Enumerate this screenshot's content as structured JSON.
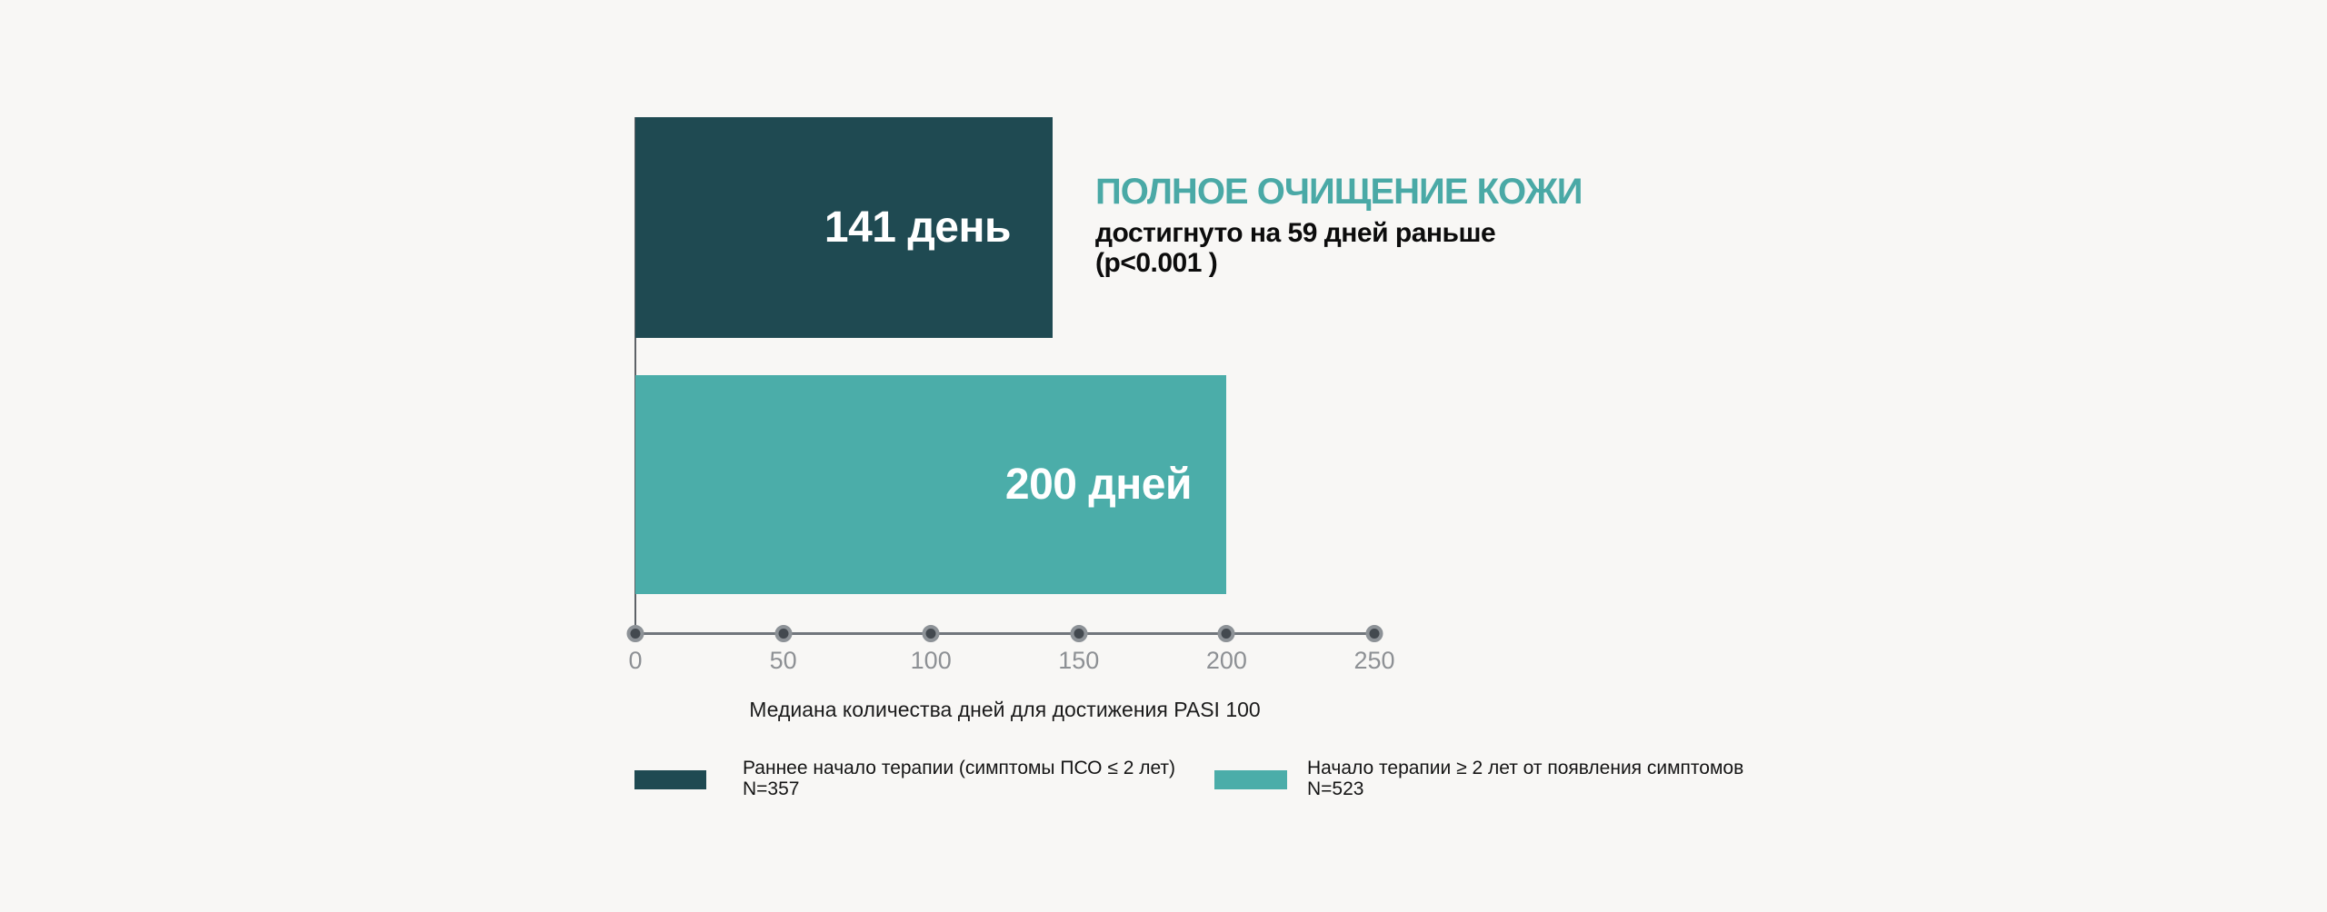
{
  "page": {
    "background": "#f8f7f5"
  },
  "chart_data": {
    "type": "bar",
    "orientation": "horizontal",
    "title": "ПОЛНОЕ ОЧИЩЕНИЕ КОЖИ",
    "annotation_line1": "достигнуто на 59 дней раньше",
    "annotation_line2": "(p<0.001 )",
    "xlabel": "Медиана количества дней для достижения PASI 100",
    "xlim": [
      0,
      250
    ],
    "x_ticks": [
      "0",
      "50",
      "100",
      "150",
      "200",
      "250"
    ],
    "grid": false,
    "legend_position": "bottom",
    "series": [
      {
        "name": "Раннее начало терапии (симптомы ПСО ≤ 2 лет)",
        "legend_n": "N=357",
        "value": 141,
        "bar_label": "141 день",
        "color": "#1f4a52"
      },
      {
        "name": "Начало терапии ≥ 2 лет от появления симптомов",
        "legend_n": "N=523",
        "value": 200,
        "bar_label": "200 дней",
        "color": "#4bada9"
      }
    ],
    "colors": {
      "title_text": "#4aa9a6",
      "axis_line": "#71767c",
      "tick_marker_fill": "#43494f",
      "tick_marker_ring": "#8d9297",
      "tick_label": "#8d9094",
      "bar_label_text": "#ffffff"
    }
  }
}
